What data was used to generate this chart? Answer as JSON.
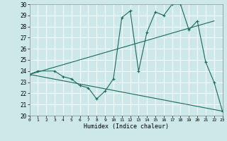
{
  "xlabel": "Humidex (Indice chaleur)",
  "xlim": [
    0,
    23
  ],
  "ylim": [
    20,
    30
  ],
  "xticks": [
    0,
    1,
    2,
    3,
    4,
    5,
    6,
    7,
    8,
    9,
    10,
    11,
    12,
    13,
    14,
    15,
    16,
    17,
    18,
    19,
    20,
    21,
    22,
    23
  ],
  "yticks": [
    20,
    21,
    22,
    23,
    24,
    25,
    26,
    27,
    28,
    29,
    30
  ],
  "background_color": "#cce8e8",
  "grid_color": "#ffffff",
  "line_color": "#1a6b5a",
  "series0_x": [
    0,
    1,
    3,
    4,
    5,
    6,
    7,
    8,
    9,
    10,
    11,
    12,
    13,
    14,
    15,
    16,
    17,
    18,
    19,
    20,
    21,
    22,
    23
  ],
  "series0_y": [
    23.7,
    24.0,
    24.0,
    23.5,
    23.3,
    22.7,
    22.5,
    21.5,
    22.2,
    23.3,
    28.8,
    29.4,
    24.0,
    27.5,
    29.3,
    29.0,
    30.0,
    30.0,
    27.7,
    28.5,
    24.8,
    23.0,
    20.4
  ],
  "series1_x": [
    0,
    22
  ],
  "series1_y": [
    23.7,
    28.5
  ],
  "series2_x": [
    0,
    23
  ],
  "series2_y": [
    23.7,
    20.4
  ]
}
